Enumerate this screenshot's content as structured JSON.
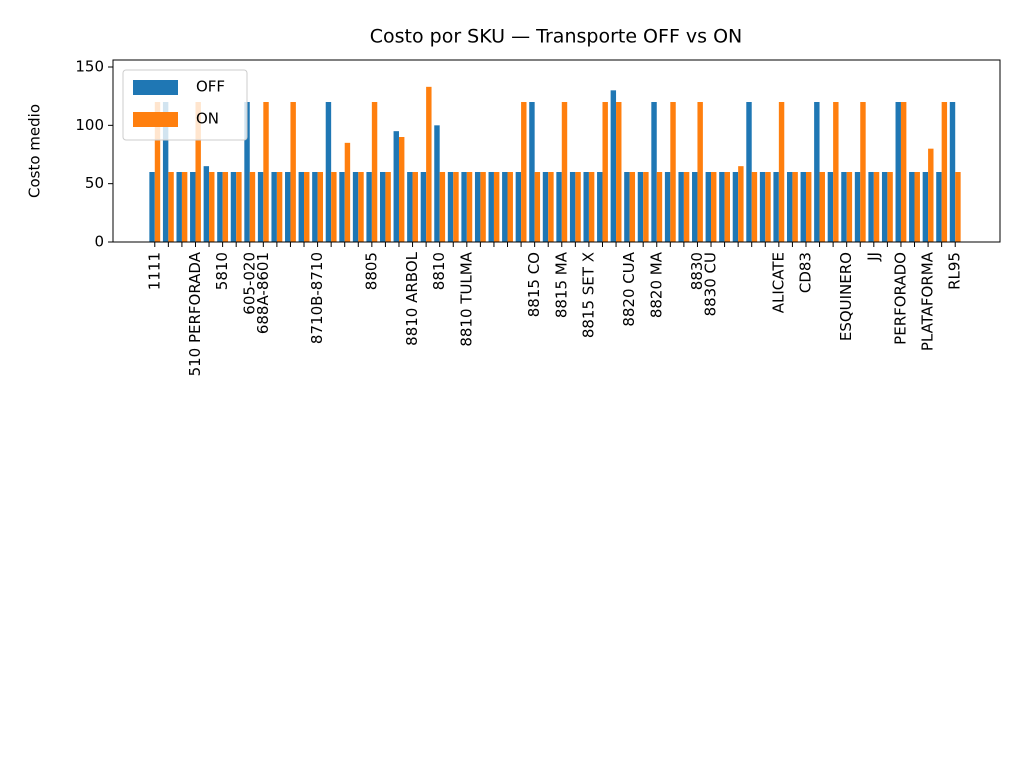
{
  "chart_data": {
    "type": "bar",
    "title": "Costo por SKU — Transporte OFF vs ON",
    "y_label": "Costo medio",
    "categories": [
      "1111",
      null,
      null,
      "510 PERFORADA",
      null,
      "5810",
      null,
      "605-020",
      "688A-8601",
      null,
      null,
      null,
      "8710B-8710",
      null,
      null,
      null,
      "8805",
      null,
      null,
      "8810 ARBOL",
      null,
      "8810",
      null,
      "8810 TULMA",
      null,
      null,
      null,
      null,
      "8815 CO",
      null,
      "8815 MA",
      null,
      "8815 SET X",
      null,
      null,
      "8820 CUA",
      null,
      "8820 MA",
      null,
      null,
      "8830",
      "8830 CU",
      null,
      null,
      null,
      null,
      "ALICATE",
      null,
      "CD83",
      null,
      null,
      "ESQUINERO",
      null,
      "JJ",
      null,
      "PERFORADO",
      null,
      "PLATAFORMA",
      null,
      "RL95"
    ],
    "series": [
      {
        "name": "OFF",
        "color": "#1f77b4",
        "values": [
          60,
          120,
          60,
          60,
          65,
          60,
          60,
          120,
          60,
          60,
          60,
          60,
          60,
          120,
          60,
          60,
          60,
          60,
          95,
          60,
          60,
          100,
          60,
          60,
          60,
          60,
          60,
          60,
          120,
          60,
          60,
          60,
          60,
          60,
          130,
          60,
          60,
          120,
          60,
          60,
          60,
          60,
          60,
          60,
          120,
          60,
          60,
          60,
          60,
          120,
          60,
          60,
          60,
          60,
          60,
          120,
          60,
          60,
          60,
          120
        ]
      },
      {
        "name": "ON",
        "color": "#ff7f0e",
        "values": [
          120,
          60,
          60,
          120,
          60,
          60,
          60,
          60,
          120,
          60,
          120,
          60,
          60,
          60,
          85,
          60,
          120,
          60,
          90,
          60,
          133,
          60,
          60,
          60,
          60,
          60,
          60,
          120,
          60,
          60,
          120,
          60,
          60,
          120,
          120,
          60,
          60,
          60,
          120,
          60,
          120,
          60,
          60,
          65,
          60,
          60,
          120,
          60,
          60,
          60,
          120,
          60,
          120,
          60,
          60,
          120,
          60,
          80,
          120,
          60
        ]
      }
    ],
    "ylim": [
      0,
      156
    ],
    "yticks": [
      0,
      50,
      100,
      150
    ],
    "legend": "upper left"
  }
}
